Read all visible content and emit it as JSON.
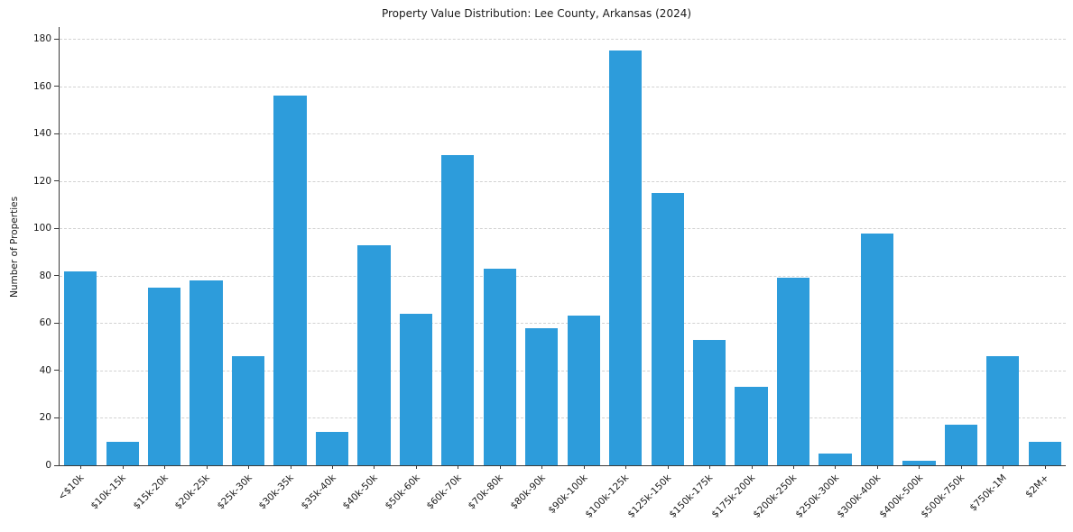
{
  "chart_data": {
    "type": "bar",
    "title": "Property Value Distribution: Lee County, Arkansas (2024)",
    "xlabel": "",
    "ylabel": "Number of Properties",
    "categories": [
      "<$10k",
      "$10k-15k",
      "$15k-20k",
      "$20k-25k",
      "$25k-30k",
      "$30k-35k",
      "$35k-40k",
      "$40k-50k",
      "$50k-60k",
      "$60k-70k",
      "$70k-80k",
      "$80k-90k",
      "$90k-100k",
      "$100k-125k",
      "$125k-150k",
      "$150k-175k",
      "$175k-200k",
      "$200k-250k",
      "$250k-300k",
      "$300k-400k",
      "$400k-500k",
      "$500k-750k",
      "$750k-1M",
      "$2M+"
    ],
    "values": [
      82,
      10,
      75,
      78,
      46,
      156,
      14,
      93,
      64,
      131,
      83,
      58,
      63,
      175,
      115,
      53,
      33,
      79,
      5,
      98,
      2,
      17,
      46,
      10
    ],
    "ylim": [
      0,
      185
    ],
    "yticks": [
      0,
      20,
      40,
      60,
      80,
      100,
      120,
      140,
      160,
      180
    ],
    "grid": "horizontal-dashed",
    "legend": "none",
    "bar_color": "#2D9CDB"
  }
}
